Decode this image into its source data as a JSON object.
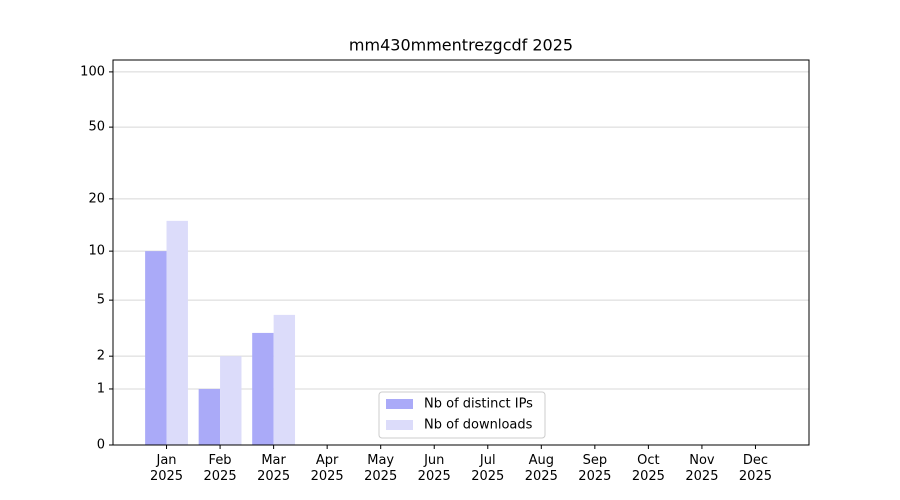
{
  "chart_data": {
    "type": "bar",
    "title": "mm430mmentrezgcdf 2025",
    "categories": [
      "Jan\n2025",
      "Feb\n2025",
      "Mar\n2025",
      "Apr\n2025",
      "May\n2025",
      "Jun\n2025",
      "Jul\n2025",
      "Aug\n2025",
      "Sep\n2025",
      "Oct\n2025",
      "Nov\n2025",
      "Dec\n2025"
    ],
    "series": [
      {
        "name": "Nb of distinct IPs",
        "color": "#aaaaf8",
        "values": [
          10,
          1,
          3,
          0,
          0,
          0,
          0,
          0,
          0,
          0,
          0,
          0
        ]
      },
      {
        "name": "Nb of downloads",
        "color": "#dcdcfa",
        "values": [
          15,
          2,
          4,
          0,
          0,
          0,
          0,
          0,
          0,
          0,
          0,
          0
        ]
      }
    ],
    "y_scale": "log1p",
    "ylim": [
      0,
      116
    ],
    "yticks": [
      0,
      1,
      2,
      5,
      10,
      20,
      50,
      100
    ],
    "grid": true,
    "legend": "lower center"
  }
}
